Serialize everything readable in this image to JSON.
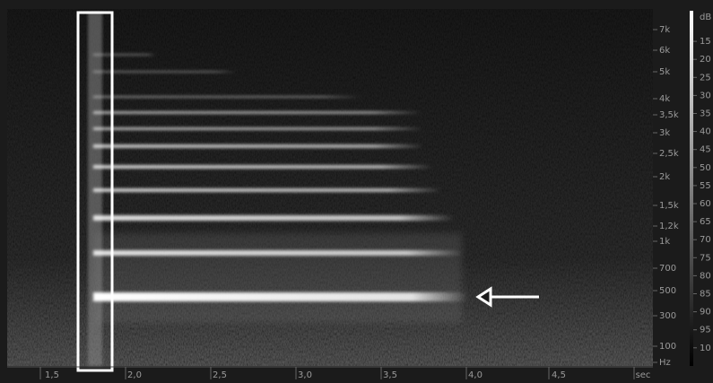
{
  "time_axis": {
    "labels": [
      "1,5",
      "2,0",
      "2,5",
      "3,0",
      "3,5",
      "4,0",
      "4,5",
      "sec"
    ]
  },
  "freq_axis": {
    "labels": [
      "7k",
      "6k",
      "5k",
      "4k",
      "3,5k",
      "3k",
      "2,5k",
      "2k",
      "1,5k",
      "1,2k",
      "1k",
      "700",
      "500",
      "300",
      "100",
      "Hz"
    ]
  },
  "db_axis": {
    "labels": [
      "dB",
      "15",
      "20",
      "25",
      "30",
      "35",
      "40",
      "45",
      "50",
      "55",
      "60",
      "65",
      "70",
      "75",
      "80",
      "85",
      "90",
      "95",
      "10"
    ]
  }
}
